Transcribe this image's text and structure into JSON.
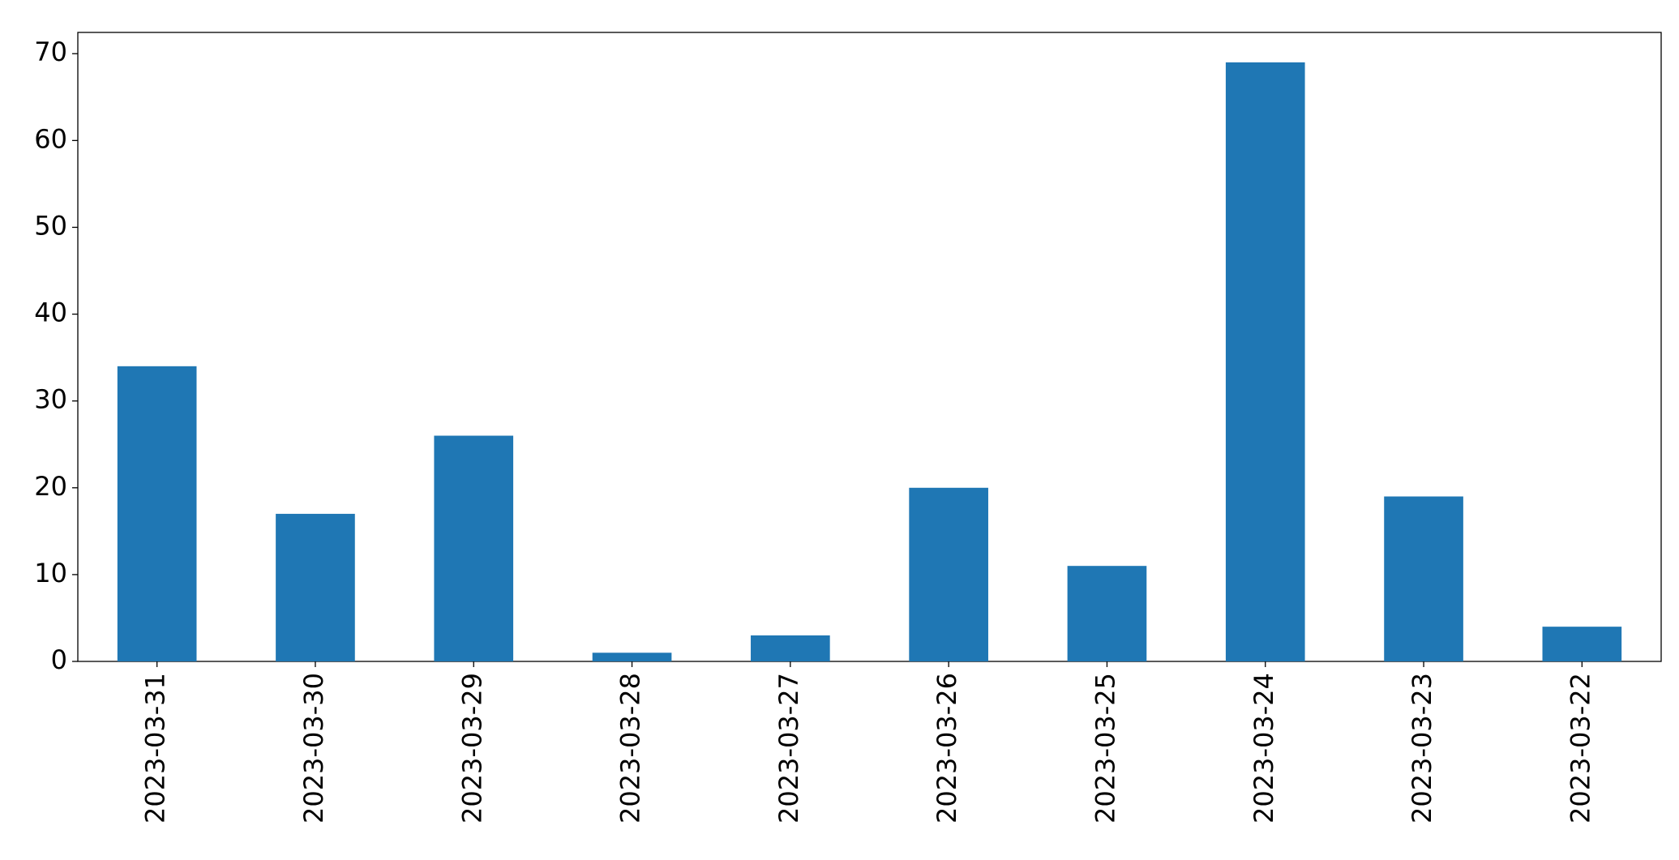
{
  "chart_data": {
    "type": "bar",
    "categories": [
      "2023-03-31",
      "2023-03-30",
      "2023-03-29",
      "2023-03-28",
      "2023-03-27",
      "2023-03-26",
      "2023-03-25",
      "2023-03-24",
      "2023-03-23",
      "2023-03-22"
    ],
    "values": [
      34,
      17,
      26,
      1,
      3,
      20,
      11,
      69,
      19,
      4
    ],
    "color": "#1f77b4",
    "ylim": [
      0,
      72.45
    ],
    "yticks": [
      0,
      10,
      20,
      30,
      40,
      50,
      60,
      70
    ],
    "grid": false
  }
}
